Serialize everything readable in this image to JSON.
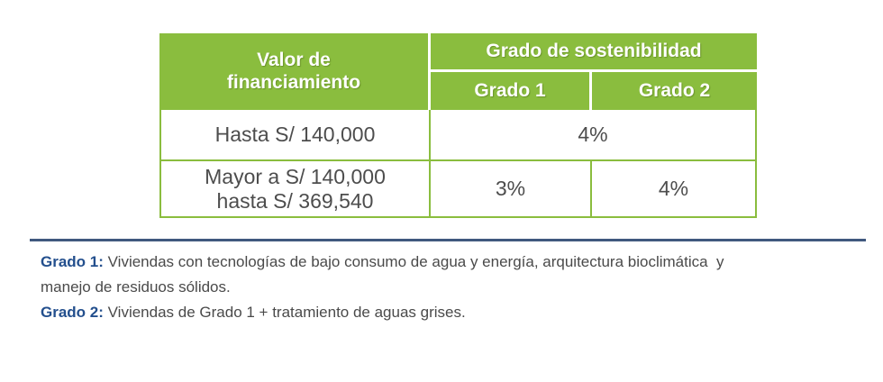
{
  "table": {
    "header": {
      "column1_lines": [
        "Valor de",
        "financiamiento"
      ],
      "group_header": "Grado de sostenibilidad",
      "sub_headers": [
        "Grado 1",
        "Grado 2"
      ]
    },
    "rows": [
      {
        "range_lines": [
          "Hasta S/ 140,000"
        ],
        "rate_merged": "4%"
      },
      {
        "range_lines": [
          "Mayor a S/ 140,000",
          "hasta S/ 369,540"
        ],
        "rate_grado1": "3%",
        "rate_grado2": "4%"
      }
    ]
  },
  "notes": [
    {
      "label": "Grado 1:",
      "lines": [
        "Viviendas con tecnologías de bajo consumo de agua y energía, arquitectura bioclimática  y",
        "manejo de residuos sólidos."
      ]
    },
    {
      "label": "Grado 2:",
      "lines": [
        "Viviendas de Grado 1 + tratamiento de aguas grises."
      ]
    }
  ],
  "colors": {
    "table_green": "#8ABD3E",
    "note_label_blue": "#234F8D",
    "divider_blue": "#40597E",
    "body_text": "#4D4D4D"
  }
}
